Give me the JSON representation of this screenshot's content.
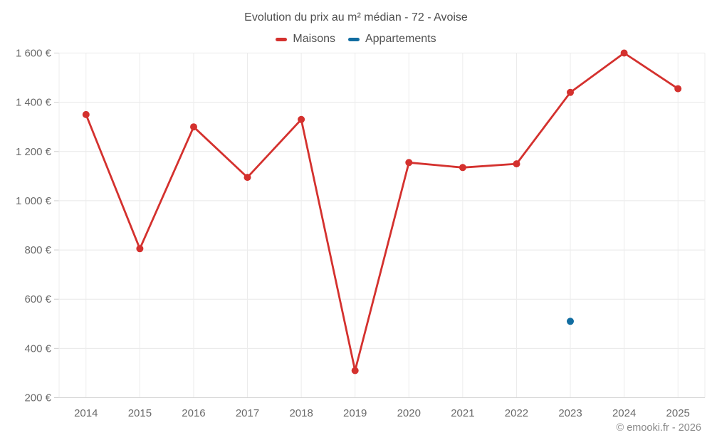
{
  "chart": {
    "title": "Evolution du prix au m² médian - 72 - Avoise",
    "footer": "© emooki.fr - 2026"
  },
  "chart_data": {
    "type": "line",
    "title": "Evolution du prix au m² médian - 72 - Avoise",
    "categories": [
      "2014",
      "2015",
      "2016",
      "2017",
      "2018",
      "2019",
      "2020",
      "2021",
      "2022",
      "2023",
      "2024",
      "2025"
    ],
    "series": [
      {
        "name": "Maisons",
        "color": "#d4312e",
        "values": [
          1350,
          805,
          1300,
          1095,
          1330,
          310,
          1155,
          1135,
          1150,
          1440,
          1600,
          1455
        ]
      },
      {
        "name": "Appartements",
        "color": "#116da1",
        "values": [
          null,
          null,
          null,
          null,
          null,
          null,
          null,
          null,
          null,
          510,
          null,
          null
        ]
      }
    ],
    "xlabel": "",
    "ylabel": "",
    "ylim": [
      200,
      1600
    ],
    "yticks": [
      {
        "value": 200,
        "label": "200 €"
      },
      {
        "value": 400,
        "label": "400 €"
      },
      {
        "value": 600,
        "label": "600 €"
      },
      {
        "value": 800,
        "label": "800 €"
      },
      {
        "value": 1000,
        "label": "1 000 €"
      },
      {
        "value": 1200,
        "label": "1 200 €"
      },
      {
        "value": 1400,
        "label": "1 400 €"
      },
      {
        "value": 1600,
        "label": "1 600 €"
      }
    ],
    "grid": true,
    "legend_position": "top",
    "marker_radius": 5,
    "line_width": 2.8
  }
}
